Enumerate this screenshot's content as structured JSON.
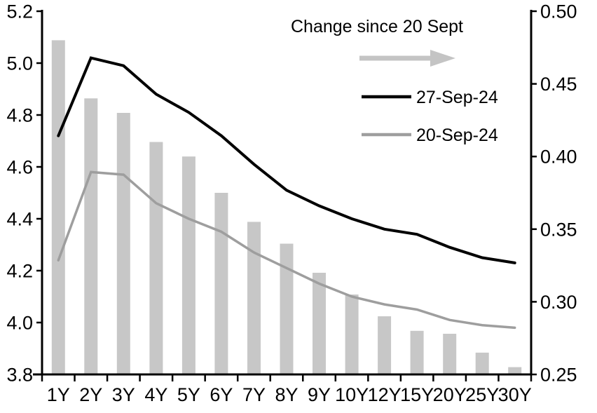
{
  "legend": {
    "title": "Change since 20 Sept",
    "items": [
      {
        "label": "27-Sep-24",
        "color": "#000000"
      },
      {
        "label": "20-Sep-24",
        "color": "#9e9e9e"
      }
    ]
  },
  "colors": {
    "background": "#ffffff",
    "bar": "#c7c7c7",
    "line_27sep": "#000000",
    "line_20sep": "#9e9e9e",
    "arrow": "#c4c4c4",
    "axis": "#000000",
    "text": "#000000"
  },
  "chart_data": {
    "type": "combo",
    "categories": [
      "1Y",
      "2Y",
      "3Y",
      "4Y",
      "5Y",
      "6Y",
      "7Y",
      "8Y",
      "9Y",
      "10Y",
      "12Y",
      "15Y",
      "20Y",
      "25Y",
      "30Y"
    ],
    "series": [
      {
        "name": "Change since 20 Sept",
        "type": "bar",
        "axis": "right",
        "values": [
          0.48,
          0.44,
          0.43,
          0.41,
          0.4,
          0.375,
          0.355,
          0.34,
          0.32,
          0.305,
          0.29,
          0.28,
          0.278,
          0.265,
          0.255
        ]
      },
      {
        "name": "27-Sep-24",
        "type": "line",
        "axis": "left",
        "values": [
          4.72,
          5.02,
          4.99,
          4.88,
          4.81,
          4.72,
          4.61,
          4.51,
          4.45,
          4.4,
          4.36,
          4.34,
          4.29,
          4.25,
          4.23
        ]
      },
      {
        "name": "20-Sep-24",
        "type": "line",
        "axis": "left",
        "values": [
          4.24,
          4.58,
          4.57,
          4.46,
          4.4,
          4.35,
          4.27,
          4.21,
          4.15,
          4.1,
          4.07,
          4.05,
          4.01,
          3.99,
          3.98
        ]
      }
    ],
    "left_axis": {
      "min": 3.8,
      "max": 5.2,
      "step": 0.2,
      "tick_labels": [
        "5.2",
        "5.0",
        "4.8",
        "4.6",
        "4.4",
        "4.2",
        "4.0",
        "3.8"
      ]
    },
    "right_axis": {
      "min": 0.25,
      "max": 0.5,
      "step": 0.05,
      "tick_labels": [
        "0.50",
        "0.45",
        "0.40",
        "0.35",
        "0.30",
        "0.25"
      ]
    },
    "grid": false,
    "legend_position": "top-center-inside",
    "title": "",
    "xlabel": "",
    "ylabel_left": "",
    "ylabel_right": ""
  }
}
